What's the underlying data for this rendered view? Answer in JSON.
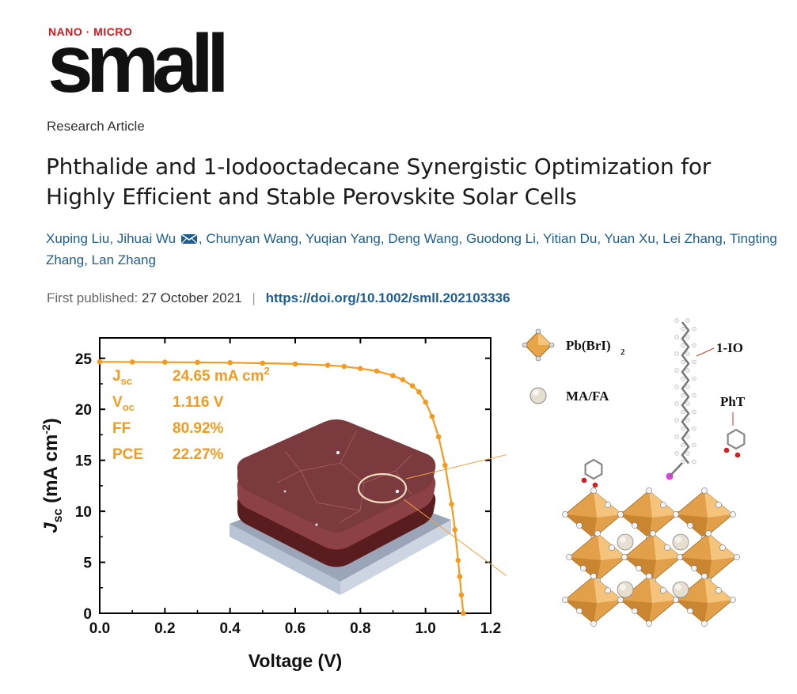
{
  "journal": {
    "tag": "NANO · MICRO",
    "name": "small"
  },
  "article_type": "Research Article",
  "title": "Phthalide and 1-Iodooctadecane Synergistic Optimization for Highly Efficient and Stable Perovskite Solar Cells",
  "authors": [
    "Xuping Liu",
    "Jihuai Wu",
    "Chunyan Wang",
    "Yuqian Yang",
    "Deng Wang",
    "Guodong Li",
    "Yitian Du",
    "Yuan Xu",
    "Lei Zhang",
    "Tingting Zhang",
    "Lan Zhang"
  ],
  "publication": {
    "label": "First published:",
    "date": "27 October 2021",
    "doi": "https://doi.org/10.1002/smll.202103336"
  },
  "chart_data": {
    "type": "line",
    "title": "",
    "xlabel": "Voltage (V)",
    "ylabel": "J_sc (mA cm^-2)",
    "ylabel_parts": {
      "main": "J",
      "sub": "sc",
      "unit": " (mA cm",
      "sup": "-2",
      "close": ")"
    },
    "xlim": [
      0.0,
      1.2
    ],
    "ylim": [
      0,
      27
    ],
    "x_ticks": [
      "0.0",
      "0.2",
      "0.4",
      "0.6",
      "0.8",
      "1.0",
      "1.2"
    ],
    "y_ticks": [
      "0",
      "5",
      "10",
      "15",
      "20",
      "25"
    ],
    "series": [
      {
        "name": "J-V curve",
        "color": "#f39b20",
        "x": [
          0.0,
          0.1,
          0.2,
          0.3,
          0.4,
          0.5,
          0.6,
          0.7,
          0.75,
          0.8,
          0.85,
          0.9,
          0.93,
          0.96,
          0.98,
          1.0,
          1.02,
          1.04,
          1.06,
          1.08,
          1.09,
          1.1,
          1.105,
          1.11,
          1.116
        ],
        "y": [
          24.65,
          24.64,
          24.62,
          24.6,
          24.57,
          24.52,
          24.45,
          24.32,
          24.2,
          24.0,
          23.75,
          23.3,
          22.9,
          22.3,
          21.7,
          20.7,
          19.3,
          17.3,
          14.5,
          10.7,
          8.2,
          5.2,
          3.6,
          1.8,
          0.0
        ]
      }
    ],
    "annotations": [
      {
        "label": "J",
        "sub": "sc",
        "value": "24.65 mA cm",
        "sup": "2"
      },
      {
        "label": "V",
        "sub": "oc",
        "value": "1.116 V",
        "sup": ""
      },
      {
        "label": "FF",
        "sub": "",
        "value": "80.92%",
        "sup": ""
      },
      {
        "label": "PCE",
        "sub": "",
        "value": "22.27%",
        "sup": ""
      }
    ]
  },
  "scheme": {
    "legend": [
      {
        "name": "Pb(BrI)",
        "sub": "2",
        "color": "#e8a548"
      },
      {
        "name": "MA/FA",
        "sub": "",
        "color": "#e6dfcf"
      }
    ],
    "labels": {
      "iodooctadecane": "1-IO",
      "phthalide": "PhT"
    }
  }
}
